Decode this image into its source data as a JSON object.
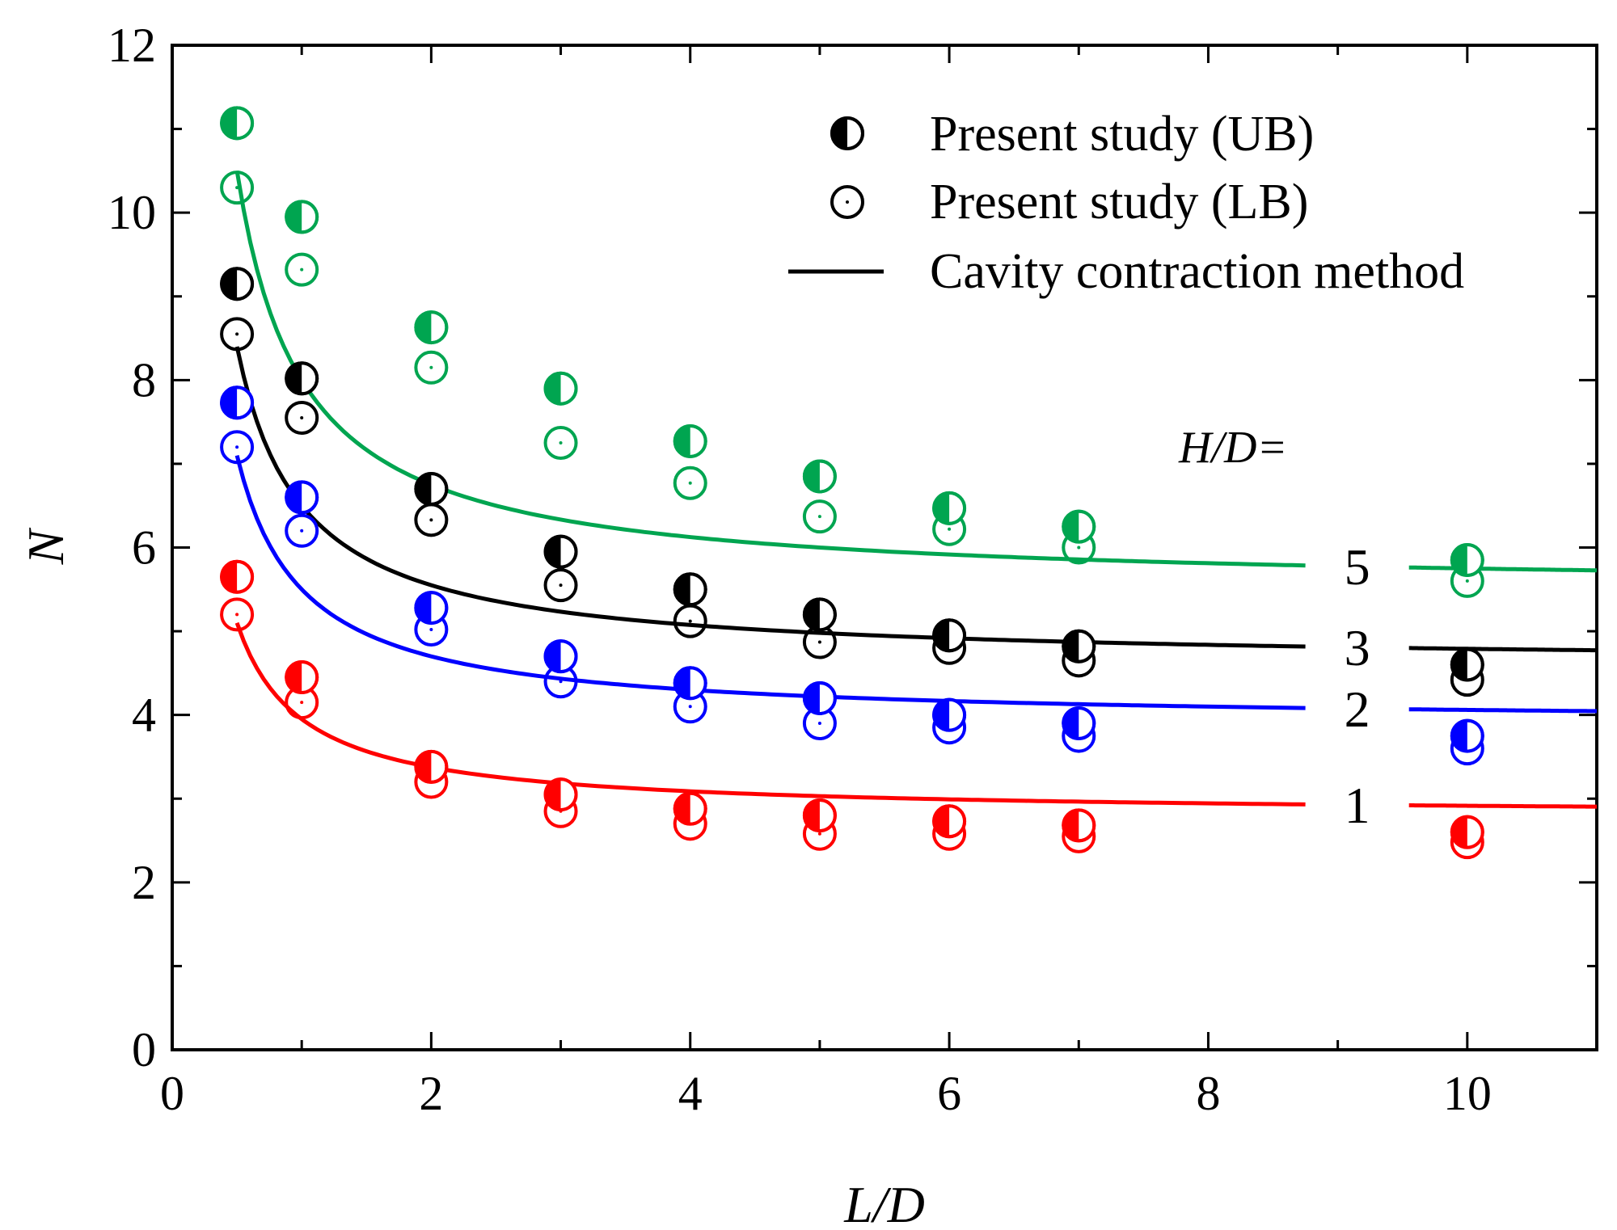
{
  "chart_data": {
    "type": "scatter",
    "xlabel": "L/D",
    "ylabel": "N",
    "xlim": [
      0,
      11
    ],
    "ylim": [
      0,
      12
    ],
    "xticks": [
      0,
      2,
      4,
      6,
      8,
      10
    ],
    "yticks": [
      0,
      2,
      4,
      6,
      8,
      10,
      12
    ],
    "legend": {
      "position": "top-right",
      "entries": [
        {
          "label": "Present study (UB)",
          "marker": "half-filled-circle"
        },
        {
          "label": "Present study (LB)",
          "marker": "open-circle-dot"
        },
        {
          "label": "Cavity contraction method",
          "marker": "line"
        }
      ]
    },
    "annotation": "H/D=",
    "x": [
      0.5,
      1,
      2,
      3,
      4,
      5,
      6,
      7,
      10
    ],
    "series": [
      {
        "name": "1",
        "color": "#ff0000",
        "ub": [
          5.65,
          4.45,
          3.38,
          3.05,
          2.88,
          2.8,
          2.73,
          2.68,
          2.6
        ],
        "lb": [
          5.2,
          4.15,
          3.2,
          2.85,
          2.7,
          2.58,
          2.58,
          2.55,
          2.48
        ],
        "cavity": {
          "a": 2.8,
          "b": 1.15
        }
      },
      {
        "name": "2",
        "color": "#0000ff",
        "ub": [
          7.73,
          6.6,
          5.28,
          4.7,
          4.38,
          4.2,
          4.0,
          3.9,
          3.75
        ],
        "lb": [
          7.2,
          6.2,
          5.02,
          4.4,
          4.1,
          3.9,
          3.85,
          3.75,
          3.6
        ],
        "cavity": {
          "a": 3.9,
          "b": 1.6
        }
      },
      {
        "name": "3",
        "color": "#000000",
        "ub": [
          9.15,
          8.02,
          6.7,
          5.95,
          5.5,
          5.2,
          4.95,
          4.82,
          4.6
        ],
        "lb": [
          8.55,
          7.55,
          6.33,
          5.55,
          5.12,
          4.87,
          4.8,
          4.65,
          4.42
        ],
        "cavity": {
          "a": 4.6,
          "b": 1.9
        }
      },
      {
        "name": "5",
        "color": "#00a550",
        "ub": [
          11.07,
          9.95,
          8.63,
          7.9,
          7.27,
          6.85,
          6.47,
          6.25,
          5.85
        ],
        "lb": [
          10.3,
          9.32,
          8.15,
          7.25,
          6.77,
          6.37,
          6.22,
          6.0,
          5.6
        ],
        "cavity": {
          "a": 5.5,
          "b": 2.5
        }
      }
    ]
  }
}
